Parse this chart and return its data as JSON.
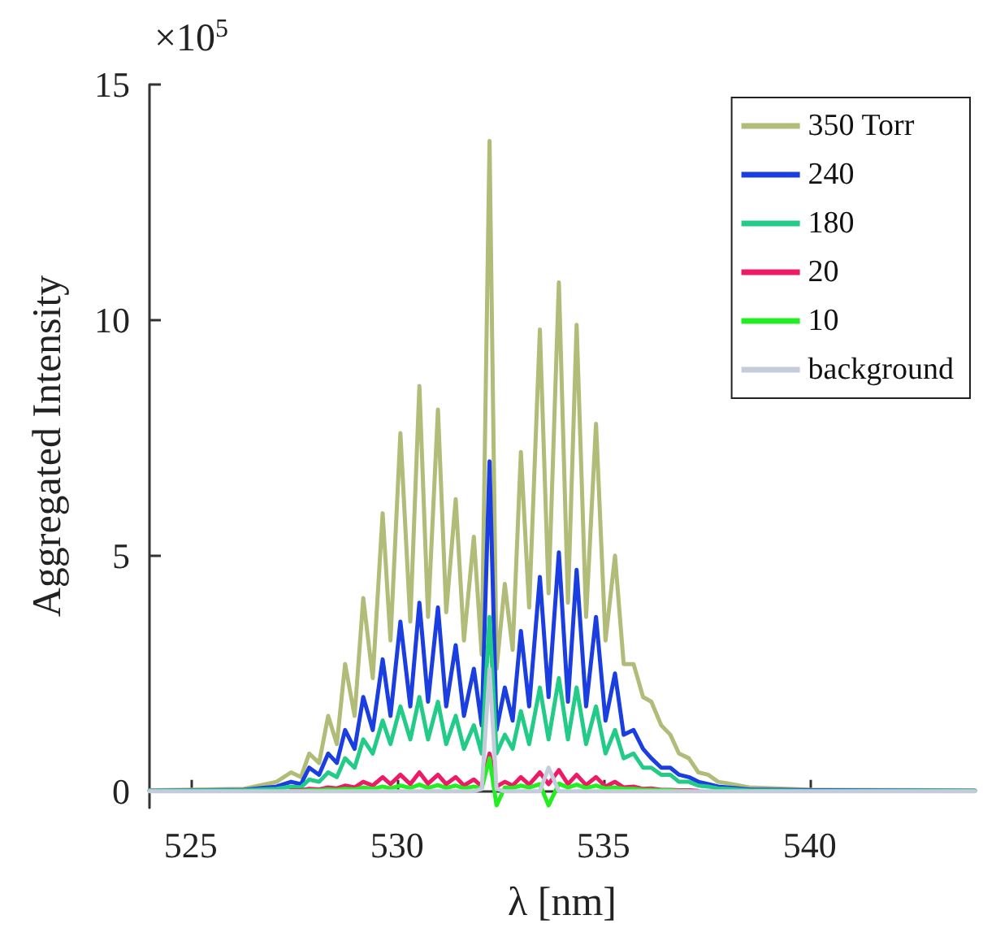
{
  "chart_data": {
    "type": "line",
    "xlabel": "λ [nm]",
    "ylabel": "Aggregated Intensity",
    "annotations": [
      "×10$^{5}$"
    ],
    "x": [
      524.0,
      526.29,
      527.08,
      527.43,
      527.67,
      527.87,
      528.11,
      528.33,
      528.54,
      528.74,
      528.97,
      529.18,
      529.41,
      529.65,
      529.84,
      530.08,
      530.32,
      530.54,
      530.75,
      530.99,
      531.19,
      531.42,
      531.62,
      531.86,
      532.05,
      532.24,
      532.41,
      532.61,
      532.8,
      533.0,
      533.2,
      533.46,
      533.67,
      533.92,
      534.14,
      534.35,
      534.58,
      534.82,
      535.05,
      535.28,
      535.49,
      535.73,
      535.96,
      536.16,
      536.4,
      536.62,
      536.83,
      537.07,
      537.3,
      537.54,
      537.78,
      538.0,
      538.53,
      540.11,
      544.0
    ],
    "series": [
      {
        "name": "350 Torr",
        "color": "#b0bc78",
        "values": [
          0.02,
          0.05,
          0.2,
          0.4,
          0.3,
          0.8,
          0.6,
          1.6,
          1.0,
          2.7,
          1.6,
          4.1,
          2.4,
          5.9,
          3.2,
          7.6,
          3.6,
          8.6,
          3.7,
          8.1,
          3.8,
          6.2,
          3.2,
          5.4,
          2.9,
          13.8,
          2.6,
          4.4,
          3.0,
          7.2,
          3.9,
          9.8,
          4.2,
          10.8,
          4.0,
          9.9,
          3.7,
          7.8,
          3.2,
          5.0,
          2.7,
          2.7,
          2.0,
          1.9,
          1.4,
          1.2,
          0.8,
          0.7,
          0.4,
          0.35,
          0.2,
          0.17,
          0.08,
          0.03,
          0.02
        ]
      },
      {
        "name": "240",
        "color": "#1a3ee0",
        "values": [
          0.01,
          0.03,
          0.1,
          0.2,
          0.15,
          0.5,
          0.35,
          0.8,
          0.6,
          1.3,
          0.9,
          2.0,
          1.3,
          2.8,
          1.6,
          3.6,
          1.8,
          4.0,
          1.9,
          3.9,
          1.8,
          3.1,
          1.6,
          2.6,
          1.4,
          7.0,
          1.3,
          2.2,
          1.5,
          3.4,
          1.8,
          4.55,
          2.0,
          5.07,
          1.9,
          4.7,
          1.8,
          3.7,
          1.5,
          2.5,
          1.2,
          1.3,
          0.9,
          0.7,
          0.5,
          0.5,
          0.35,
          0.3,
          0.2,
          0.15,
          0.1,
          0.08,
          0.04,
          0.02,
          0.01
        ]
      },
      {
        "name": "180",
        "color": "#22cc88",
        "values": [
          0.01,
          0.02,
          0.05,
          0.1,
          0.08,
          0.25,
          0.2,
          0.4,
          0.3,
          0.7,
          0.5,
          1.1,
          0.8,
          1.5,
          1.0,
          1.8,
          1.1,
          2.0,
          1.1,
          1.9,
          1.0,
          1.6,
          0.9,
          1.4,
          0.8,
          3.7,
          0.8,
          1.2,
          0.9,
          1.7,
          1.0,
          2.2,
          1.1,
          2.4,
          1.1,
          2.2,
          1.0,
          1.8,
          0.8,
          1.3,
          0.7,
          0.8,
          0.5,
          0.5,
          0.35,
          0.35,
          0.2,
          0.2,
          0.12,
          0.1,
          0.06,
          0.05,
          0.02,
          0.01,
          0.01
        ]
      },
      {
        "name": "20",
        "color": "#ee1a66",
        "values": [
          null,
          null,
          null,
          0.02,
          0.02,
          0.05,
          0.04,
          0.08,
          0.06,
          0.12,
          0.08,
          0.2,
          0.12,
          0.3,
          0.15,
          0.35,
          0.15,
          0.4,
          0.16,
          0.35,
          0.15,
          0.3,
          0.12,
          0.25,
          0.1,
          0.8,
          0.1,
          0.2,
          0.12,
          0.3,
          0.14,
          0.4,
          0.15,
          0.45,
          0.15,
          0.35,
          0.13,
          0.3,
          0.1,
          0.2,
          0.08,
          0.1,
          0.05,
          0.06,
          0.03,
          0.03,
          0.02,
          0.02,
          0.01,
          null,
          null,
          null,
          null,
          null,
          null
        ]
      },
      {
        "name": "10",
        "color": "#22ee22",
        "values": [
          null,
          null,
          null,
          0.01,
          0.01,
          0.02,
          0.02,
          0.04,
          0.03,
          0.05,
          0.04,
          0.08,
          0.05,
          0.1,
          0.06,
          0.12,
          0.07,
          0.14,
          0.07,
          0.13,
          0.07,
          0.12,
          0.06,
          0.1,
          0.06,
          0.7,
          -0.3,
          0.08,
          0.07,
          0.12,
          0.08,
          0.15,
          -0.3,
          0.16,
          0.08,
          0.14,
          0.07,
          0.12,
          0.06,
          0.08,
          0.05,
          0.05,
          0.03,
          0.03,
          0.02,
          0.02,
          0.01,
          0.01,
          null,
          null,
          null,
          null,
          null,
          null,
          null
        ]
      },
      {
        "name": "background",
        "color": "#c4ccdc",
        "values": [
          0,
          0,
          0,
          0,
          0,
          0,
          0,
          0,
          0,
          0,
          0,
          0,
          0,
          0,
          0,
          0,
          0,
          0,
          0,
          0,
          0,
          0,
          0,
          0,
          0.05,
          2.6,
          0.05,
          0,
          0,
          0,
          0,
          0,
          0.5,
          0,
          0,
          0,
          0,
          0,
          0,
          0,
          0,
          0,
          0,
          0,
          0,
          0,
          0,
          0,
          0,
          0,
          0,
          0,
          0,
          0,
          0
        ]
      }
    ],
    "xlim": [
      524,
      544
    ],
    "xticks": [
      525,
      530,
      535,
      540
    ],
    "ylim": [
      -0.35,
      15
    ],
    "yticks": [
      0,
      5,
      10,
      15
    ],
    "grid": false,
    "legend": "top right",
    "marker": "none",
    "line_style": "solid"
  }
}
